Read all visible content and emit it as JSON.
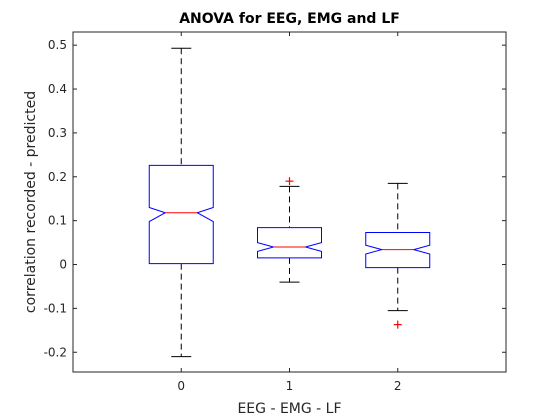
{
  "chart_data": {
    "type": "box",
    "title": "ANOVA for EEG, EMG and LF",
    "xlabel": "EEG - EMG - LF",
    "ylabel": "correlation recorded - predicted",
    "categories": [
      "0",
      "1",
      "2"
    ],
    "ylim": [
      -0.245,
      0.53
    ],
    "yticks": [
      -0.2,
      -0.1,
      0,
      0.1,
      0.2,
      0.3,
      0.4,
      0.5
    ],
    "ytick_labels": [
      "-0.2",
      "-0.1",
      "0",
      "0.1",
      "0.2",
      "0.3",
      "0.4",
      "0.5"
    ],
    "notched": true,
    "grid": false,
    "colors": {
      "box": "#0000ff",
      "median": "#ff0000",
      "whisker": "#000000",
      "outlier": "#ff0000",
      "axis": "#262626"
    },
    "boxes": [
      {
        "category": "0",
        "q1": 0.002,
        "median": 0.118,
        "q3": 0.226,
        "notch_low": 0.098,
        "notch_high": 0.13,
        "whisker_low": -0.21,
        "whisker_high": 0.493,
        "outliers": []
      },
      {
        "category": "1",
        "q1": 0.015,
        "median": 0.04,
        "q3": 0.084,
        "notch_low": 0.03,
        "notch_high": 0.05,
        "whisker_low": -0.04,
        "whisker_high": 0.178,
        "outliers": [
          0.19
        ]
      },
      {
        "category": "2",
        "q1": -0.007,
        "median": 0.034,
        "q3": 0.073,
        "notch_low": 0.024,
        "notch_high": 0.044,
        "whisker_low": -0.105,
        "whisker_high": 0.185,
        "outliers": [
          -0.137
        ]
      }
    ]
  }
}
